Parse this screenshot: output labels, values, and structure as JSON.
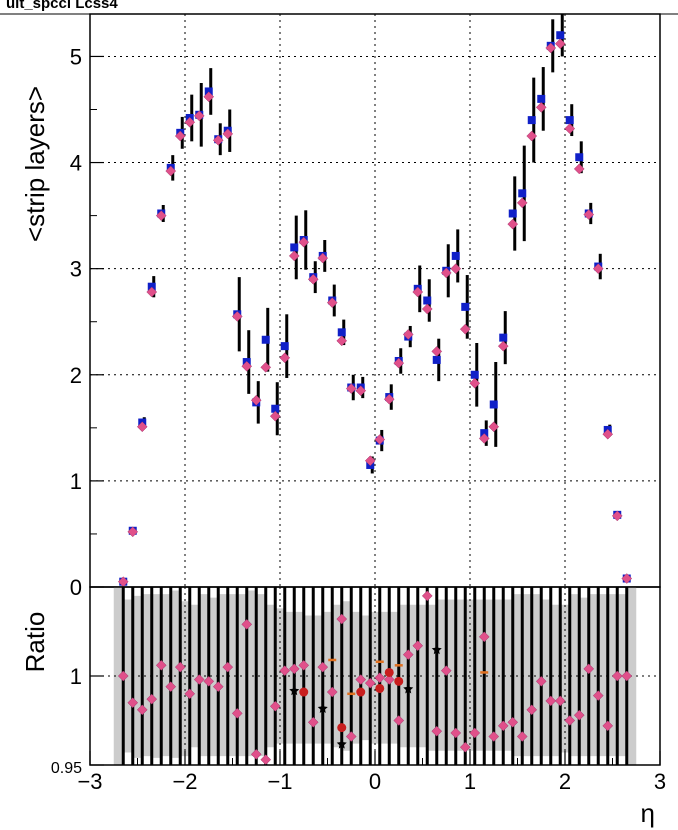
{
  "header": {
    "title_fragment": "ult_spccl Lcss4"
  },
  "chart_data": [
    {
      "type": "scatter",
      "panel": "top",
      "title": "",
      "xlabel": "",
      "ylabel": "<strip layers>",
      "xlim": [
        -3,
        3
      ],
      "ylim": [
        0,
        5.4
      ],
      "yticks": [
        "0",
        "1",
        "2",
        "3",
        "4",
        "5"
      ],
      "grid": true,
      "colors": {
        "blue": "#1020c8",
        "pink": "#e0508a",
        "red": "#c81e1e",
        "black": "#000000",
        "gray_band": "#cccccc"
      },
      "series": [
        {
          "marker": "blue-square",
          "x": [
            -2.65,
            -2.55,
            -2.45,
            -2.35,
            -2.25,
            -2.15,
            -2.05,
            -1.95,
            -1.85,
            -1.75,
            -1.65,
            -1.55,
            -1.45,
            -1.35,
            -1.25,
            -1.15,
            -1.05,
            -0.95,
            -0.85,
            -0.75,
            -0.65,
            -0.55,
            -0.45,
            -0.35,
            -0.25,
            -0.15,
            -0.05,
            0.05,
            0.15,
            0.25,
            0.35,
            0.45,
            0.55,
            0.65,
            0.75,
            0.85,
            0.95,
            1.05,
            1.15,
            1.25,
            1.35,
            1.45,
            1.55,
            1.65,
            1.75,
            1.85,
            1.95,
            2.05,
            2.15,
            2.25,
            2.35,
            2.45,
            2.55,
            2.65
          ],
          "y": [
            0.05,
            0.53,
            1.55,
            2.83,
            3.52,
            3.95,
            4.28,
            4.42,
            4.45,
            4.67,
            4.22,
            4.3,
            2.57,
            2.12,
            1.74,
            2.33,
            1.68,
            2.27,
            3.2,
            3.27,
            2.92,
            3.12,
            2.7,
            2.4,
            1.88,
            1.88,
            1.15,
            1.38,
            1.79,
            2.13,
            2.36,
            2.81,
            2.7,
            2.14,
            2.98,
            3.12,
            2.64,
            2.0,
            1.45,
            1.72,
            2.35,
            3.52,
            3.71,
            4.4,
            4.6,
            5.1,
            5.2,
            4.4,
            4.05,
            3.52,
            3.02,
            1.48,
            0.68,
            0.08
          ],
          "err": [
            0.02,
            0.03,
            0.05,
            0.1,
            0.08,
            0.12,
            0.15,
            0.22,
            0.3,
            0.22,
            0.15,
            0.2,
            0.35,
            0.3,
            0.2,
            0.3,
            0.25,
            0.3,
            0.3,
            0.28,
            0.15,
            0.15,
            0.15,
            0.12,
            0.12,
            0.1,
            0.08,
            0.1,
            0.12,
            0.12,
            0.1,
            0.22,
            0.2,
            0.2,
            0.25,
            0.25,
            0.3,
            0.3,
            0.12,
            0.4,
            0.25,
            0.35,
            0.45,
            0.4,
            0.3,
            0.25,
            0.2,
            0.15,
            0.15,
            0.1,
            0.12,
            0.05,
            0.03,
            0.02
          ]
        },
        {
          "marker": "pink-diamond",
          "x": [
            -2.65,
            -2.55,
            -2.45,
            -2.35,
            -2.25,
            -2.15,
            -2.05,
            -1.95,
            -1.85,
            -1.75,
            -1.65,
            -1.55,
            -1.45,
            -1.35,
            -1.25,
            -1.15,
            -1.05,
            -0.95,
            -0.85,
            -0.75,
            -0.65,
            -0.55,
            -0.45,
            -0.35,
            -0.25,
            -0.15,
            -0.05,
            0.05,
            0.15,
            0.25,
            0.35,
            0.45,
            0.55,
            0.65,
            0.75,
            0.85,
            0.95,
            1.05,
            1.15,
            1.25,
            1.35,
            1.45,
            1.55,
            1.65,
            1.75,
            1.85,
            1.95,
            2.05,
            2.15,
            2.25,
            2.35,
            2.45,
            2.55,
            2.65
          ],
          "y": [
            0.05,
            0.52,
            1.51,
            2.78,
            3.5,
            3.92,
            4.25,
            4.38,
            4.44,
            4.62,
            4.21,
            4.27,
            2.55,
            2.08,
            1.76,
            2.07,
            1.61,
            2.16,
            3.12,
            3.25,
            2.9,
            3.1,
            2.68,
            2.32,
            1.87,
            1.85,
            1.19,
            1.39,
            1.77,
            2.11,
            2.38,
            2.78,
            2.62,
            2.22,
            2.96,
            3.0,
            2.43,
            1.92,
            1.4,
            1.51,
            2.27,
            3.42,
            3.62,
            4.25,
            4.52,
            5.08,
            5.12,
            4.32,
            3.94,
            3.51,
            3.0,
            1.44,
            0.67,
            0.08
          ]
        }
      ]
    },
    {
      "type": "scatter",
      "panel": "bottom",
      "title": "",
      "xlabel": "η",
      "ylabel": "Ratio",
      "xlim": [
        -3,
        3
      ],
      "ylim": [
        0.95,
        1.05
      ],
      "xticks": [
        "−3",
        "−2",
        "−1",
        "0",
        "1",
        "2",
        "3"
      ],
      "yticks": [
        "0.95",
        "1"
      ],
      "grid": true,
      "series": [
        {
          "marker": "pink-diamond",
          "x": [
            -2.65,
            -2.55,
            -2.45,
            -2.35,
            -2.25,
            -2.15,
            -2.05,
            -1.95,
            -1.85,
            -1.75,
            -1.65,
            -1.55,
            -1.45,
            -1.35,
            -1.25,
            -1.15,
            -1.05,
            -0.95,
            -0.85,
            -0.75,
            -0.65,
            -0.55,
            -0.45,
            -0.35,
            -0.25,
            -0.15,
            -0.05,
            0.05,
            0.15,
            0.25,
            0.35,
            0.45,
            0.55,
            0.65,
            0.75,
            0.85,
            0.95,
            1.05,
            1.15,
            1.25,
            1.35,
            1.45,
            1.55,
            1.65,
            1.75,
            1.85,
            1.95,
            2.05,
            2.15,
            2.25,
            2.35,
            2.45,
            2.55,
            2.65
          ],
          "y": [
            1.0,
            0.985,
            0.981,
            0.987,
            1.006,
            0.994,
            1.005,
            0.99,
            0.998,
            0.997,
            0.994,
            1.005,
            0.979,
            1.029,
            0.956,
            0.953,
            0.983,
            1.003,
            1.004,
            1.006,
            0.974,
            1.005,
            0.991,
            1.032,
            0.966,
            0.998,
            0.996,
            0.999,
            0.998,
            0.975,
            1.012,
            1.017,
            1.045,
            0.969,
            1.003,
            0.968,
            0.96,
            0.968,
            1.022,
            0.966,
            0.972,
            0.974,
            0.966,
            0.981,
            0.997,
            0.986,
            0.986,
            0.975,
            0.978,
            1.004,
            0.989,
            0.972,
            1.0,
            1.0
          ]
        },
        {
          "marker": "red-circle",
          "x": [
            -0.75,
            -0.35,
            -0.15,
            0.05,
            0.15,
            0.25
          ],
          "y": [
            0.991,
            0.971,
            0.991,
            0.993,
            1.002,
            0.997
          ]
        },
        {
          "marker": "black-star",
          "x": [
            -0.85,
            -0.55,
            -0.35,
            0.35,
            0.65
          ],
          "y": [
            0.992,
            0.982,
            0.962,
            0.993,
            1.015
          ]
        },
        {
          "marker": "orange-dash",
          "x": [
            -0.45,
            -0.25,
            0.05,
            0.25,
            1.15
          ],
          "y": [
            1.009,
            0.99,
            1.008,
            1.006,
            1.002
          ]
        }
      ],
      "band": {
        "x": [
          -2.7,
          -2.6,
          -2.5,
          -2.4,
          -2.3,
          -2.2,
          -2.1,
          -2.0,
          -1.9,
          -1.8,
          -1.7,
          -1.6,
          -1.5,
          -1.4,
          -1.3,
          -1.2,
          -1.1,
          -1.0,
          -0.9,
          -0.8,
          -0.7,
          -0.6,
          -0.5,
          -0.4,
          -0.3,
          -0.2,
          -0.1,
          0.0,
          0.1,
          0.2,
          0.3,
          0.4,
          0.5,
          0.6,
          0.7,
          0.8,
          0.9,
          1.0,
          1.1,
          1.2,
          1.3,
          1.4,
          1.5,
          1.6,
          1.7,
          1.8,
          1.9,
          2.0,
          2.1,
          2.2,
          2.3,
          2.4,
          2.5,
          2.6,
          2.7
        ],
        "upper": [
          1.055,
          1.043,
          1.045,
          1.046,
          1.046,
          1.046,
          1.048,
          1.042,
          1.04,
          1.046,
          1.044,
          1.046,
          1.046,
          1.046,
          1.048,
          1.046,
          1.04,
          1.038,
          1.036,
          1.036,
          1.034,
          1.034,
          1.036,
          1.04,
          1.042,
          1.036,
          1.034,
          1.036,
          1.036,
          1.036,
          1.04,
          1.04,
          1.04,
          1.04,
          1.043,
          1.043,
          1.043,
          1.043,
          1.043,
          1.043,
          1.043,
          1.043,
          1.046,
          1.046,
          1.046,
          1.043,
          1.04,
          1.04,
          1.046,
          1.044,
          1.046,
          1.046,
          1.046,
          1.046,
          1.055
        ],
        "lower": [
          0.95,
          0.957,
          0.954,
          0.955,
          0.954,
          0.955,
          0.954,
          0.955,
          0.96,
          0.955,
          0.955,
          0.955,
          0.955,
          0.955,
          0.955,
          0.955,
          0.96,
          0.962,
          0.962,
          0.962,
          0.962,
          0.962,
          0.962,
          0.96,
          0.958,
          0.962,
          0.964,
          0.962,
          0.962,
          0.962,
          0.96,
          0.96,
          0.96,
          0.958,
          0.958,
          0.958,
          0.958,
          0.958,
          0.958,
          0.958,
          0.958,
          0.958,
          0.955,
          0.955,
          0.955,
          0.955,
          0.955,
          0.957,
          0.955,
          0.955,
          0.955,
          0.955,
          0.955,
          0.955,
          0.95
        ]
      }
    }
  ]
}
